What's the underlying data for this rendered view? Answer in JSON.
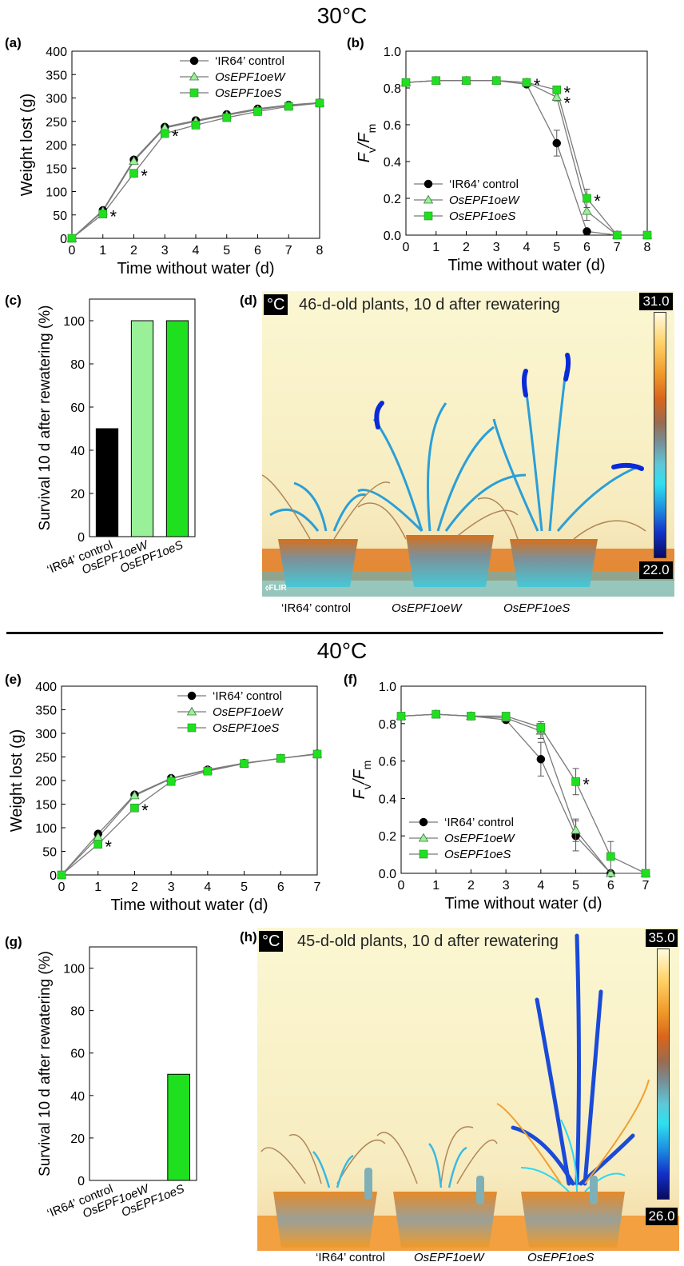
{
  "headings": {
    "top": "30°C",
    "bottom": "40°C"
  },
  "panel_labels": {
    "a": "(a)",
    "b": "(b)",
    "c": "(c)",
    "d": "(d)",
    "e": "(e)",
    "f": "(f)",
    "g": "(g)",
    "h": "(h)"
  },
  "colors": {
    "control": "#000000",
    "oeW": "#99f099",
    "oeS": "#1fe01f",
    "line": "#7a7a7a",
    "thermal_bg": "#fbf7cf"
  },
  "chart_data": [
    {
      "id": "a",
      "type": "line",
      "xlabel": "Time without water (d)",
      "ylabel": "Weight lost (g)",
      "xlim": [
        0,
        8
      ],
      "ylim": [
        0,
        400
      ],
      "xticks": [
        0,
        1,
        2,
        3,
        4,
        5,
        6,
        7,
        8
      ],
      "yticks": [
        0,
        50,
        100,
        150,
        200,
        250,
        300,
        350,
        400
      ],
      "legend": "top-right",
      "x": [
        0,
        1,
        2,
        3,
        4,
        5,
        6,
        7,
        8
      ],
      "series": [
        {
          "name": "‘IR64’ control",
          "marker": "circle",
          "values": [
            0,
            60,
            168,
            238,
            252,
            265,
            277,
            285,
            290
          ]
        },
        {
          "name": "OsEPF1oeW",
          "marker": "triangle",
          "values": [
            0,
            58,
            165,
            236,
            250,
            263,
            275,
            284,
            290
          ]
        },
        {
          "name": "OsEPF1oeS",
          "marker": "square",
          "values": [
            0,
            52,
            139,
            224,
            242,
            258,
            271,
            282,
            289
          ]
        }
      ],
      "annotations": [
        {
          "x": 1,
          "y": 52,
          "text": "*"
        },
        {
          "x": 2,
          "y": 139,
          "text": "*"
        },
        {
          "x": 3,
          "y": 224,
          "text": "*"
        }
      ]
    },
    {
      "id": "b",
      "type": "line",
      "xlabel": "Time without water (d)",
      "ylabel_main": "F",
      "ylabel_sub1": "v",
      "ylabel_sep": "/F",
      "ylabel_sub2": "m",
      "xlim": [
        0,
        8
      ],
      "ylim": [
        0,
        1.0
      ],
      "xticks": [
        0,
        1,
        2,
        3,
        4,
        5,
        6,
        7,
        8
      ],
      "yticks": [
        0.0,
        0.2,
        0.4,
        0.6,
        0.8,
        1.0
      ],
      "legend": "bottom-left",
      "x": [
        0,
        1,
        2,
        3,
        4,
        5,
        6,
        7,
        8
      ],
      "series": [
        {
          "name": "‘IR64’ control",
          "marker": "circle",
          "values": [
            0.83,
            0.84,
            0.84,
            0.84,
            0.82,
            0.5,
            0.02,
            0.0,
            0.0
          ],
          "errors": [
            0,
            0,
            0,
            0,
            0,
            0.07,
            0.01,
            0,
            0
          ]
        },
        {
          "name": "OsEPF1oeW",
          "marker": "triangle",
          "values": [
            0.83,
            0.84,
            0.84,
            0.84,
            0.83,
            0.75,
            0.13,
            0.0,
            0.0
          ],
          "errors": [
            0,
            0,
            0,
            0,
            0,
            0.02,
            0.05,
            0,
            0
          ]
        },
        {
          "name": "OsEPF1oeS",
          "marker": "square",
          "values": [
            0.83,
            0.84,
            0.84,
            0.84,
            0.83,
            0.79,
            0.2,
            0.0,
            0.0
          ],
          "errors": [
            0,
            0,
            0,
            0,
            0,
            0.01,
            0.05,
            0,
            0
          ]
        }
      ],
      "annotations": [
        {
          "x": 4,
          "y": 0.83,
          "text": "*"
        },
        {
          "x": 5,
          "y": 0.79,
          "text": "*"
        },
        {
          "x": 5,
          "y": 0.75,
          "text": "*"
        },
        {
          "x": 6,
          "y": 0.2,
          "text": "*"
        }
      ]
    },
    {
      "id": "c",
      "type": "bar",
      "ylabel": "Survival 10 d after rewatering (%)",
      "ylim": [
        0,
        110
      ],
      "yticks": [
        0,
        20,
        40,
        60,
        80,
        100
      ],
      "categories": [
        "‘IR64’ control",
        "OsEPF1oeW",
        "OsEPF1oeS"
      ],
      "values": [
        50,
        100,
        100
      ]
    },
    {
      "id": "e",
      "type": "line",
      "xlabel": "Time without water (d)",
      "ylabel": "Weight lost (g)",
      "xlim": [
        0,
        7
      ],
      "ylim": [
        0,
        400
      ],
      "xticks": [
        0,
        1,
        2,
        3,
        4,
        5,
        6,
        7
      ],
      "yticks": [
        0,
        50,
        100,
        150,
        200,
        250,
        300,
        350,
        400
      ],
      "legend": "top-right",
      "x": [
        0,
        1,
        2,
        3,
        4,
        5,
        6,
        7
      ],
      "series": [
        {
          "name": "‘IR64’ control",
          "marker": "circle",
          "values": [
            0,
            87,
            170,
            205,
            223,
            237,
            247,
            257
          ]
        },
        {
          "name": "OsEPF1oeW",
          "marker": "triangle",
          "values": [
            0,
            80,
            168,
            204,
            222,
            236,
            247,
            256
          ]
        },
        {
          "name": "OsEPF1oeS",
          "marker": "square",
          "values": [
            0,
            65,
            142,
            198,
            220,
            236,
            247,
            256
          ]
        }
      ],
      "annotations": [
        {
          "x": 1,
          "y": 65,
          "text": "*"
        },
        {
          "x": 2,
          "y": 142,
          "text": "*"
        }
      ]
    },
    {
      "id": "f",
      "type": "line",
      "xlabel": "Time without water (d)",
      "ylabel_main": "F",
      "ylabel_sub1": "v",
      "ylabel_sep": "/F",
      "ylabel_sub2": "m",
      "xlim": [
        0,
        7
      ],
      "ylim": [
        0,
        1.0
      ],
      "xticks": [
        0,
        1,
        2,
        3,
        4,
        5,
        6,
        7
      ],
      "yticks": [
        0.0,
        0.2,
        0.4,
        0.6,
        0.8,
        1.0
      ],
      "legend": "bottom-left",
      "x": [
        0,
        1,
        2,
        3,
        4,
        5,
        6,
        7
      ],
      "series": [
        {
          "name": "‘IR64’ control",
          "marker": "circle",
          "values": [
            0.84,
            0.85,
            0.84,
            0.82,
            0.61,
            0.2,
            0.0,
            0.0
          ],
          "errors": [
            0,
            0,
            0,
            0,
            0.09,
            0.08,
            0,
            0
          ]
        },
        {
          "name": "OsEPF1oeW",
          "marker": "triangle",
          "values": [
            0.84,
            0.85,
            0.84,
            0.83,
            0.76,
            0.23,
            0.0,
            0.0
          ],
          "errors": [
            0,
            0,
            0,
            0,
            0.04,
            0.06,
            0,
            0
          ]
        },
        {
          "name": "OsEPF1oeS",
          "marker": "square",
          "values": [
            0.84,
            0.85,
            0.84,
            0.84,
            0.78,
            0.49,
            0.09,
            0.0
          ],
          "errors": [
            0,
            0,
            0,
            0,
            0.03,
            0.07,
            0.08,
            0
          ]
        }
      ],
      "annotations": [
        {
          "x": 5,
          "y": 0.49,
          "text": "*"
        }
      ]
    },
    {
      "id": "g",
      "type": "bar",
      "ylabel": "Survival 10 d after rewatering (%)",
      "ylim": [
        0,
        110
      ],
      "yticks": [
        0,
        20,
        40,
        60,
        80,
        100
      ],
      "categories": [
        "‘IR64’ control",
        "OsEPF1oeW",
        "OsEPF1oeS"
      ],
      "values": [
        0,
        0,
        50
      ]
    }
  ],
  "thermal_d": {
    "unit": "°C",
    "title": "46-d-old plants, 10 d after rewatering",
    "scale_max": "31.0",
    "scale_min": "22.0",
    "brand": "⬨FLIR",
    "captions": [
      "‘IR64’ control",
      "OsEPF1oeW",
      "OsEPF1oeS"
    ]
  },
  "thermal_h": {
    "unit": "°C",
    "title": "45-d-old plants, 10 d after rewatering",
    "scale_max": "35.0",
    "scale_min": "26.0",
    "captions": [
      "‘IR64’ control",
      "OsEPF1oeW",
      "OsEPF1oeS"
    ]
  }
}
